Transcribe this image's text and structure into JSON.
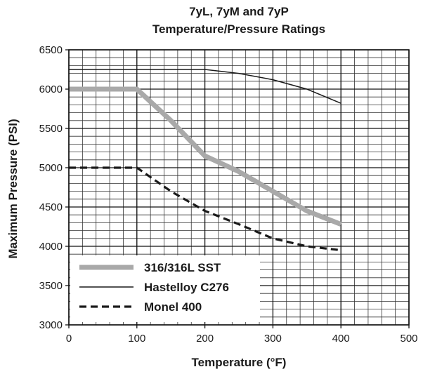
{
  "chart_data": {
    "type": "line",
    "title_line1": "7yL, 7yM and 7yP",
    "title_line2": "Temperature/Pressure Ratings",
    "xlabel": "Temperature (°F)",
    "ylabel": "Maximum Pressure (PSI)",
    "xlim": [
      0,
      500
    ],
    "ylim": [
      3000,
      6500
    ],
    "x_ticks": [
      "0",
      "100",
      "200",
      "300",
      "400",
      "500"
    ],
    "y_ticks": [
      "3000",
      "3500",
      "4000",
      "4500",
      "5000",
      "5500",
      "6000",
      "6500"
    ],
    "x_minor_step": 20,
    "y_minor_step": 100,
    "grid": true,
    "legend_position": "bottom-left",
    "series": [
      {
        "name": "316/316L SST",
        "style": "thick-gray",
        "color": "#a9a9a9",
        "x": [
          0,
          100,
          150,
          200,
          250,
          300,
          350,
          400
        ],
        "y": [
          6000,
          6000,
          5600,
          5150,
          4950,
          4700,
          4450,
          4280
        ]
      },
      {
        "name": "Hastelloy C276",
        "style": "thin-solid",
        "color": "#1a1a1a",
        "x": [
          0,
          100,
          150,
          200,
          250,
          300,
          350,
          400
        ],
        "y": [
          6250,
          6250,
          6250,
          6250,
          6200,
          6120,
          6000,
          5820
        ]
      },
      {
        "name": "Monel 400",
        "style": "dashed",
        "color": "#1a1a1a",
        "x": [
          0,
          100,
          150,
          200,
          250,
          300,
          350,
          400
        ],
        "y": [
          5000,
          5000,
          4700,
          4450,
          4280,
          4100,
          4000,
          3950
        ]
      }
    ]
  }
}
